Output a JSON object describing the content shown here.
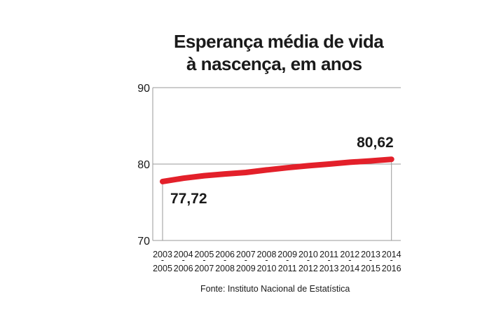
{
  "chart_data": {
    "type": "line",
    "title": "Esperança média de vida",
    "subtitle": "à nascença, em anos",
    "categories": [
      [
        "2003",
        "2005"
      ],
      [
        "2004",
        "2006"
      ],
      [
        "2005",
        "2007"
      ],
      [
        "2006",
        "2008"
      ],
      [
        "2007",
        "2009"
      ],
      [
        "2008",
        "2010"
      ],
      [
        "2009",
        "2011"
      ],
      [
        "2010",
        "2012"
      ],
      [
        "2011",
        "2013"
      ],
      [
        "2012",
        "2014"
      ],
      [
        "2013",
        "2015"
      ],
      [
        "2014",
        "2016"
      ]
    ],
    "category_separator": "-",
    "series": [
      {
        "name": "Esperança média de vida à nascença",
        "values": [
          77.72,
          78.15,
          78.48,
          78.71,
          78.9,
          79.23,
          79.52,
          79.78,
          80.0,
          80.24,
          80.41,
          80.62
        ]
      }
    ],
    "data_labels": {
      "first": "77,72",
      "last": "80,62"
    },
    "yticks": [
      70,
      80,
      90
    ],
    "ylim": [
      70,
      90
    ],
    "xlabel": "",
    "ylabel": "",
    "line_color": "#e3202a",
    "grid": true
  },
  "source": "Fonte: Instituto Nacional  de Estatística"
}
